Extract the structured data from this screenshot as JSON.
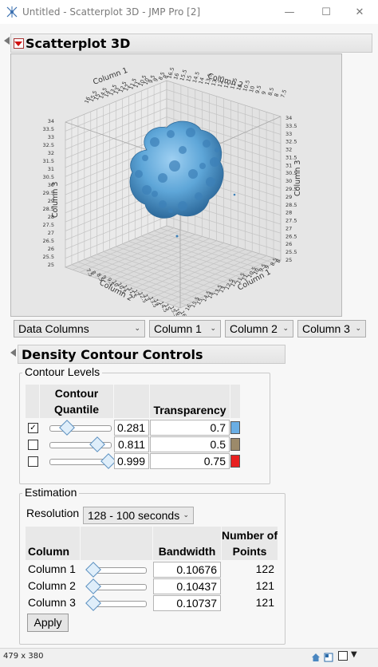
{
  "window": {
    "title": "Untitled - Scatterplot 3D - JMP Pro [2]",
    "minimize": "—",
    "maximize": "☐",
    "close": "✕"
  },
  "scatterplot": {
    "header": "Scatterplot 3D",
    "axes": {
      "col1_title": "Column 1",
      "col2_title": "Column 2",
      "col3_title": "Column 3",
      "top_col1_ticks": [
        "16",
        "15.5",
        "15",
        "14.5",
        "14",
        "13.5",
        "13",
        "12.5",
        "12",
        "11.5",
        "11",
        "10.5",
        "10",
        "9.5",
        "9",
        "8.5",
        "8"
      ],
      "top_col2_ticks": [
        "16.5",
        "16",
        "15.5",
        "15",
        "14.5",
        "14",
        "13.5",
        "13",
        "12.5",
        "12",
        "11.5",
        "11",
        "10.5",
        "10",
        "9.5",
        "9",
        "8.5",
        "8",
        "7.5"
      ],
      "left_col3_ticks": [
        "34",
        "33.5",
        "33",
        "32.5",
        "32",
        "31.5",
        "31",
        "30.5",
        "30",
        "29.5",
        "29",
        "28.5",
        "28",
        "27.5",
        "27",
        "26.5",
        "26",
        "25.5",
        "25"
      ],
      "right_col3_ticks": [
        "34",
        "33.5",
        "33",
        "32.5",
        "32",
        "31.5",
        "31",
        "30.5",
        "30",
        "29.5",
        "29",
        "28.5",
        "28",
        "27.5",
        "27",
        "26.5",
        "26",
        "25.5",
        "25"
      ],
      "bottom_col2_ticks": [
        "7.5",
        "8",
        "8.5",
        "9",
        "9.5",
        "10",
        "10.5",
        "11",
        "11.5",
        "12",
        "12.5",
        "13",
        "13.5",
        "14",
        "14.5",
        "15",
        "15.5",
        "16",
        "16.5"
      ],
      "bottom_col1_ticks": [
        "16",
        "15.5",
        "15",
        "14.5",
        "14",
        "13.5",
        "13",
        "12.5",
        "12",
        "11.5",
        "11",
        "10.5",
        "10",
        "9.5",
        "9",
        "8.5",
        "8"
      ]
    },
    "selectors": [
      "Data Columns",
      "Column 1",
      "Column 2",
      "Column 3"
    ]
  },
  "density": {
    "header": "Density Contour Controls",
    "contour_levels_label": "Contour Levels",
    "col_quantile": "Contour Quantile",
    "col_transparency": "Transparency",
    "rows": [
      {
        "checked": true,
        "quantile": "0.281",
        "slider": 0.281,
        "transparency": "0.7",
        "color": "#6aaee4"
      },
      {
        "checked": false,
        "quantile": "0.811",
        "slider": 0.811,
        "transparency": "0.5",
        "color": "#9c8a6a"
      },
      {
        "checked": false,
        "quantile": "0.999",
        "slider": 0.999,
        "transparency": "0.75",
        "color": "#e82020"
      }
    ],
    "estimation_label": "Estimation",
    "resolution_label": "Resolution",
    "resolution_value": "128 - 100 seconds",
    "est_col_column": "Column",
    "est_col_bandwidth": "Bandwidth",
    "est_col_npoints": "Number of Points",
    "est_rows": [
      {
        "name": "Column 1",
        "bandwidth": "0.10676",
        "points": "122"
      },
      {
        "name": "Column 2",
        "bandwidth": "0.10437",
        "points": "121"
      },
      {
        "name": "Column 3",
        "bandwidth": "0.10737",
        "points": "121"
      }
    ],
    "apply": "Apply"
  },
  "status": {
    "size": "479 x 380"
  }
}
